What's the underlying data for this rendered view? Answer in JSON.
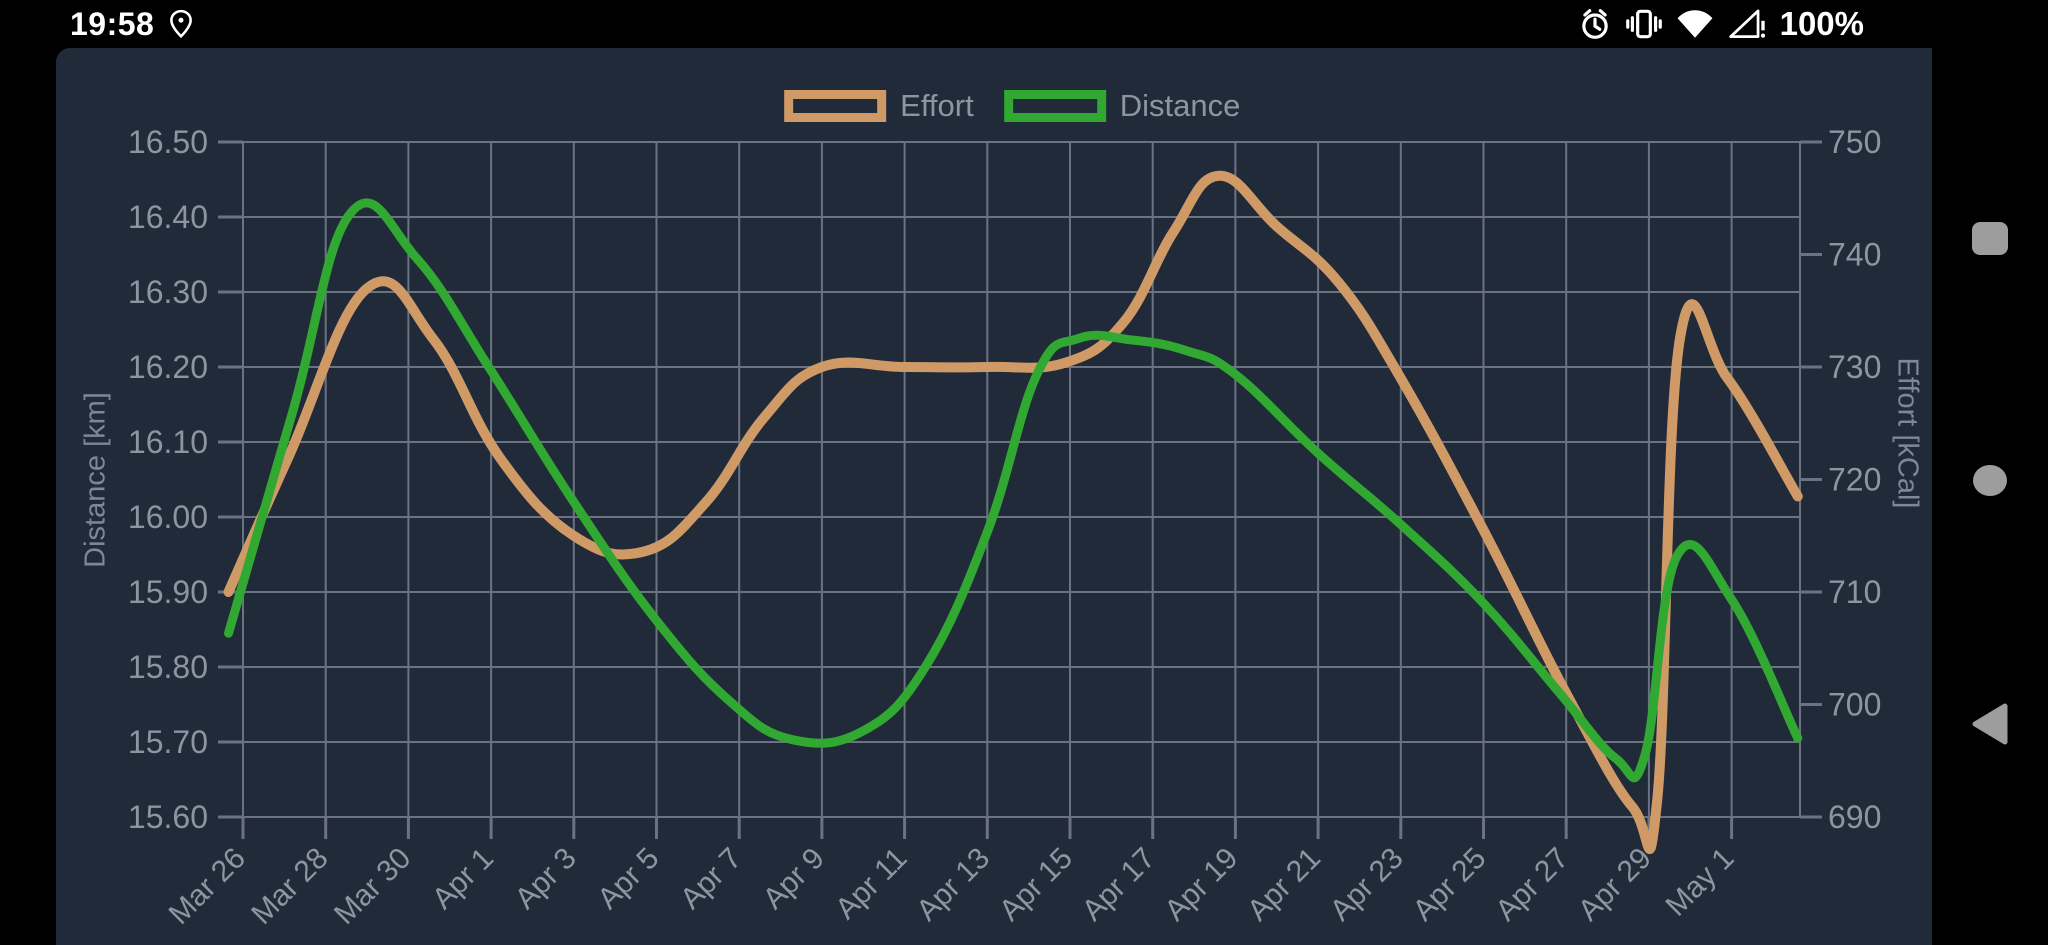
{
  "status_bar": {
    "time": "19:58",
    "battery": "100%",
    "left_icons": [
      "location-icon"
    ],
    "right_icons": [
      "alarm-icon",
      "vibrate-icon",
      "wifi-icon",
      "cellular-no-signal-icon"
    ]
  },
  "legend": [
    {
      "label": "Effort",
      "color": "#d09a66"
    },
    {
      "label": "Distance",
      "color": "#31a831"
    }
  ],
  "nav_bar": {
    "buttons": [
      {
        "name": "recents",
        "icon": "square-icon"
      },
      {
        "name": "home",
        "icon": "circle-icon"
      },
      {
        "name": "back",
        "icon": "triangle-icon"
      }
    ],
    "button_color": "#9d9d9d"
  },
  "colors": {
    "screen_background": "#000000",
    "panel_background": "#202a39",
    "gridline": "#6b7383",
    "tick_text": "#8d95a3",
    "status_text": "#ffffff"
  },
  "chart_data": {
    "type": "line",
    "style": "smooth-cubic",
    "grid": true,
    "legend_position": "top-center",
    "x_axis": {
      "day0_label": "Mar 26",
      "tick_interval_days": 2,
      "tick_labels": [
        "Mar 26",
        "Mar 28",
        "Mar 30",
        "Apr 1",
        "Apr 3",
        "Apr 5",
        "Apr 7",
        "Apr 9",
        "Apr 11",
        "Apr 13",
        "Apr 15",
        "Apr 17",
        "Apr 19",
        "Apr 21",
        "Apr 23",
        "Apr 25",
        "Apr 27",
        "Apr 29",
        "May 1"
      ],
      "domain_days": [
        -0.35,
        37.6
      ]
    },
    "left_axis": {
      "title": "Distance [km]",
      "min": 15.6,
      "max": 16.5,
      "step": 0.1,
      "tick_labels": [
        "16.50",
        "16.40",
        "16.30",
        "16.20",
        "16.10",
        "16.00",
        "15.90",
        "15.80",
        "15.70",
        "15.60"
      ]
    },
    "right_axis": {
      "title": "Effort [kCal]",
      "min": 690,
      "max": 750,
      "step": 10,
      "tick_labels": [
        "750",
        "740",
        "730",
        "720",
        "710",
        "700",
        "690"
      ]
    },
    "series": [
      {
        "name": "Effort",
        "axis": "right",
        "unit": "kCal",
        "color": "#d09a66",
        "stroke_width": 10,
        "points": [
          [
            -0.35,
            710
          ],
          [
            1.1,
            722
          ],
          [
            3.0,
            737
          ],
          [
            4.6,
            732.5
          ],
          [
            6.2,
            722
          ],
          [
            8,
            715
          ],
          [
            9.7,
            713.6
          ],
          [
            11.2,
            718
          ],
          [
            12.6,
            725.5
          ],
          [
            14,
            730
          ],
          [
            16,
            730
          ],
          [
            18,
            730
          ],
          [
            19.9,
            730.4
          ],
          [
            21.3,
            734
          ],
          [
            22.5,
            742
          ],
          [
            23.6,
            747
          ],
          [
            25,
            742.5
          ],
          [
            26.5,
            737.5
          ],
          [
            28,
            729
          ],
          [
            30,
            715.5
          ],
          [
            32,
            701
          ],
          [
            33.6,
            690.9
          ],
          [
            34.2,
            691.5
          ],
          [
            34.75,
            732.5
          ],
          [
            35.9,
            729
          ],
          [
            37.6,
            718.5
          ]
        ]
      },
      {
        "name": "Distance",
        "axis": "left",
        "unit": "km",
        "color": "#31a831",
        "stroke_width": 9,
        "points": [
          [
            -0.35,
            15.845
          ],
          [
            1.2,
            16.14
          ],
          [
            2.6,
            16.405
          ],
          [
            4.2,
            16.345
          ],
          [
            6,
            16.195
          ],
          [
            8,
            16.02
          ],
          [
            10,
            15.862
          ],
          [
            11.8,
            15.753
          ],
          [
            13.3,
            15.703
          ],
          [
            15,
            15.715
          ],
          [
            16.5,
            15.8
          ],
          [
            18,
            15.98
          ],
          [
            19.2,
            16.19
          ],
          [
            20.2,
            16.238
          ],
          [
            21.5,
            16.236
          ],
          [
            22.8,
            16.222
          ],
          [
            24,
            16.19
          ],
          [
            26,
            16.085
          ],
          [
            28,
            15.99
          ],
          [
            30,
            15.885
          ],
          [
            31.8,
            15.768
          ],
          [
            33.2,
            15.678
          ],
          [
            33.9,
            15.682
          ],
          [
            34.68,
            15.948
          ],
          [
            36,
            15.89
          ],
          [
            37.6,
            15.705
          ]
        ]
      }
    ]
  }
}
